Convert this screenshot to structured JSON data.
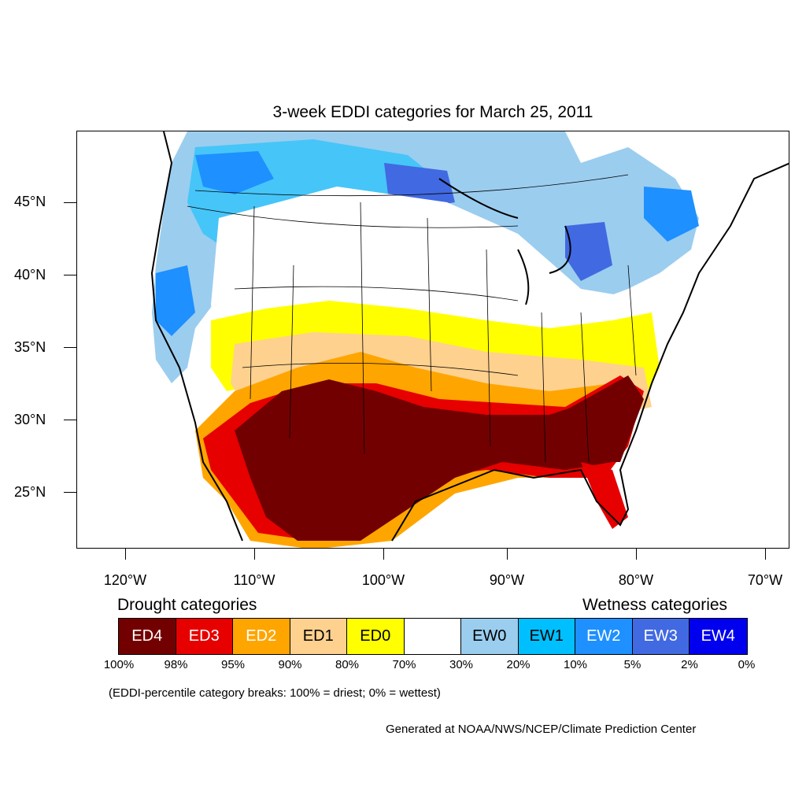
{
  "title": "3-week EDDI categories for March 25, 2011",
  "latitude_labels": [
    "45°N",
    "40°N",
    "35°N",
    "30°N",
    "25°N"
  ],
  "longitude_labels": [
    "120°W",
    "110°W",
    "100°W",
    "90°W",
    "80°W",
    "70°W"
  ],
  "legend": {
    "drought_heading": "Drought categories",
    "wetness_heading": "Wetness categories",
    "categories": [
      {
        "label": "ED4",
        "color": "#730000",
        "text_color": "#ffffff"
      },
      {
        "label": "ED3",
        "color": "#e60000",
        "text_color": "#ffffff"
      },
      {
        "label": "ED2",
        "color": "#ffa500",
        "text_color": "#ffffff"
      },
      {
        "label": "ED1",
        "color": "#fed18f",
        "text_color": "#000000"
      },
      {
        "label": "ED0",
        "color": "#ffff00",
        "text_color": "#000000"
      },
      {
        "label": "",
        "color": "#ffffff",
        "text_color": "#000000"
      },
      {
        "label": "EW0",
        "color": "#9bcdef",
        "text_color": "#000000"
      },
      {
        "label": "EW1",
        "color": "#00bfff",
        "text_color": "#000000"
      },
      {
        "label": "EW2",
        "color": "#1e90ff",
        "text_color": "#ffffff"
      },
      {
        "label": "EW3",
        "color": "#4169e1",
        "text_color": "#ffffff"
      },
      {
        "label": "EW4",
        "color": "#0000ee",
        "text_color": "#ffffff"
      }
    ],
    "breaks": [
      "100%",
      "98%",
      "95%",
      "90%",
      "80%",
      "70%",
      "30%",
      "20%",
      "10%",
      "5%",
      "2%",
      "0%"
    ]
  },
  "note": "(EDDI-percentile category breaks: 100% = driest; 0% = wettest)",
  "credit": "Generated at NOAA/NWS/NCEP/Climate Prediction Center"
}
